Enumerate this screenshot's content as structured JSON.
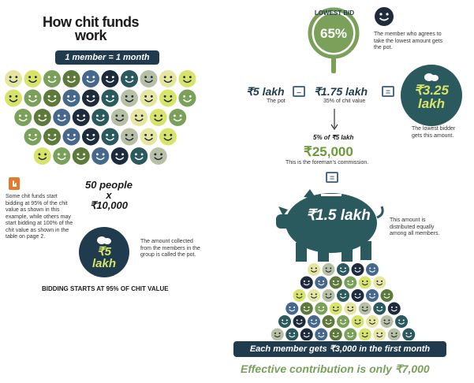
{
  "title_line1": "How chit funds",
  "title_line2": "work",
  "member_banner": "1 member = 1 month",
  "left_info": "Some chit funds start bidding at 95% of the chit value as shown in this example, while others may start bidding at 100% of the chit value as shown in the table on page 2.",
  "calc_line1": "50 people",
  "calc_line2": "x",
  "calc_line3": "₹10,000",
  "bag_value_line1": "₹5",
  "bag_value_line2": "lakh",
  "collected_note": "The amount collected from the members in the group is called the pot.",
  "bidding_starts": "BIDDING STARTS AT 95% OF CHIT VALUE",
  "lowest_bid_label": "LOWEST BID",
  "lowest_bid_value": "65%",
  "member_note": "The member who agrees to take the lowest amount gets the pot.",
  "pot_value": "₹5 lakh",
  "pot_label": "The pot",
  "minus_value": "₹1.75 lakh",
  "minus_label": "35% of chit value",
  "result_value_line1": "₹3.25",
  "result_value_line2": "lakh",
  "lowest_bidder_note": "The lowest bidder gets this amount.",
  "commission_formula": "5% of ₹5 lakh",
  "commission_value": "₹25,000",
  "commission_note": "This is the foreman's commission.",
  "pig_value": "₹1.5 lakh",
  "distributed_note": "This amount is distributed equally among all members.",
  "each_member_banner": "Each member gets ₹3,000 in the first month",
  "effective_contribution": "Effective contribution is only ₹7,000",
  "colors": {
    "navy": "#1f3b4d",
    "teal": "#2b5a5e",
    "olive": "#5d7a3a",
    "light_green": "#7aa05a",
    "sage": "#b7bfa4",
    "pale_yellow": "#e6e6a0",
    "lime": "#d8e36a",
    "blue": "#46688c",
    "green_text": "#6a9a3a"
  }
}
